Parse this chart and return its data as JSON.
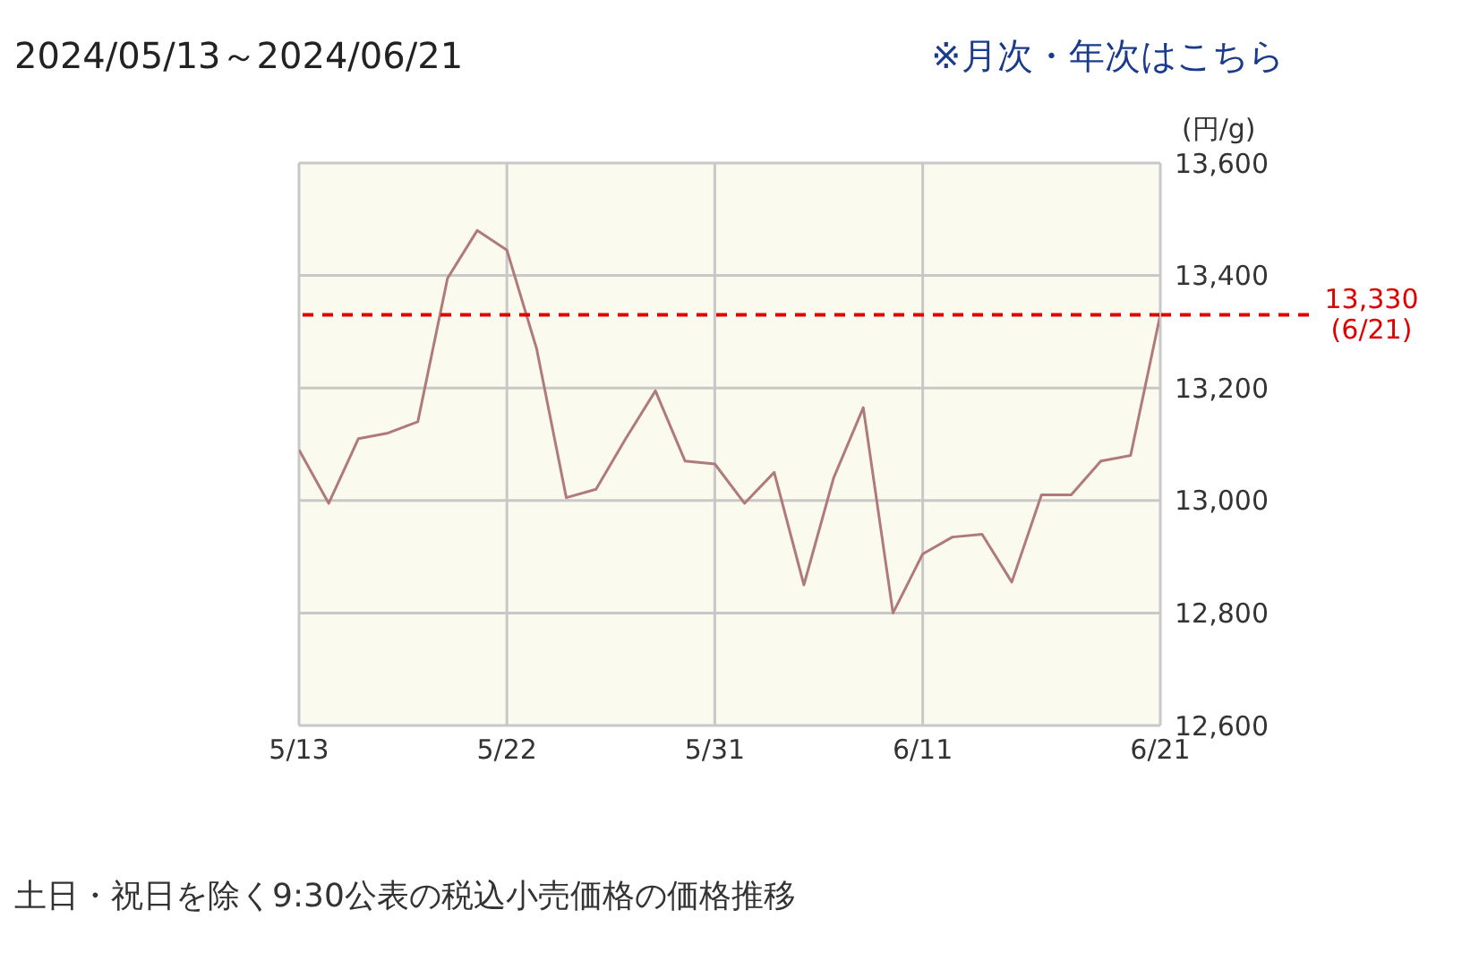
{
  "chart_data": {
    "type": "line",
    "title": "2024/05/13～2024/06/21",
    "annotations": [
      "※月次・年次はこちら",
      "土日・祝日を除く9:30公表の税込小売価格の価格推移"
    ],
    "ylabel": "(円/g)",
    "categories": [
      "5/13",
      null,
      null,
      null,
      null,
      null,
      null,
      "5/22",
      null,
      null,
      null,
      null,
      null,
      null,
      "5/31",
      null,
      null,
      null,
      null,
      null,
      null,
      "6/11",
      null,
      null,
      null,
      null,
      null,
      null,
      null,
      "6/21"
    ],
    "series": [
      {
        "color": "#b07a7a",
        "values": [
          13090,
          12995,
          13110,
          13120,
          13140,
          13395,
          13480,
          13445,
          13270,
          13005,
          13020,
          13110,
          13195,
          13070,
          13065,
          12995,
          13050,
          12850,
          13040,
          13165,
          12800,
          12905,
          12935,
          12940,
          12855,
          13010,
          13010,
          13070,
          13080,
          13330
        ]
      }
    ],
    "ylim": [
      12600,
      13600
    ],
    "yticks": [
      {
        "value": 12600,
        "label": "12,600"
      },
      {
        "value": 12800,
        "label": "12,800"
      },
      {
        "value": 13000,
        "label": "13,000"
      },
      {
        "value": 13200,
        "label": "13,200"
      },
      {
        "value": 13400,
        "label": "13,400"
      },
      {
        "value": 13600,
        "label": "13,600"
      }
    ],
    "ref_lines": [
      {
        "axis": "y",
        "value": 13330,
        "label": "13,330\n(6/21)",
        "color": "#e00000",
        "line_style": "dashed"
      }
    ],
    "grid": true,
    "marker": "none",
    "line_style": "solid"
  }
}
